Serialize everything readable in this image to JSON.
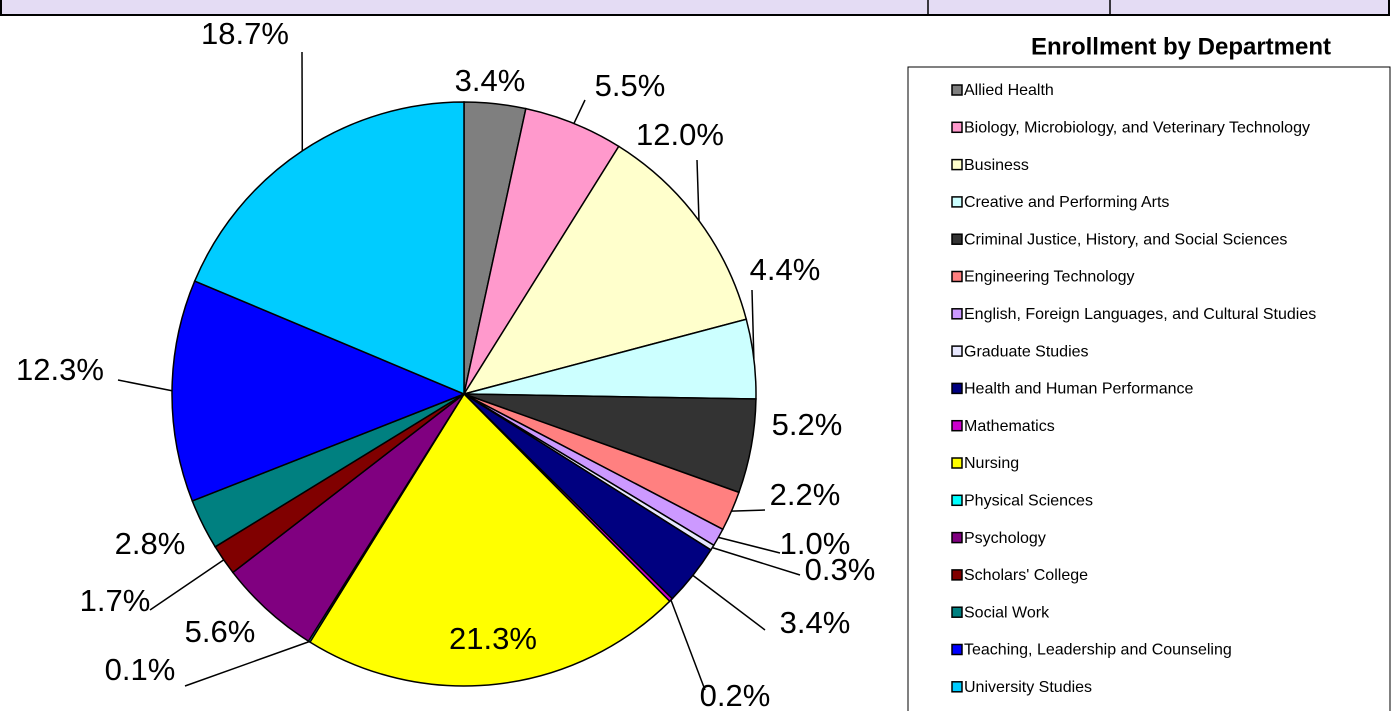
{
  "chart_data": {
    "type": "pie",
    "title": "Enrollment by Department",
    "categories": [
      "Allied Health",
      "Biology, Microbiology, and Veterinary Technology",
      "Business",
      "Creative and Performing Arts",
      "Criminal Justice, History, and Social Sciences",
      "Engineering Technology",
      "English, Foreign Languages, and Cultural Studies",
      "Graduate Studies",
      "Health and Human Performance",
      "Mathematics",
      "Nursing",
      "Physical Sciences",
      "Psychology",
      "Scholars' College",
      "Social Work",
      "Teaching, Leadership and Counseling",
      "University Studies"
    ],
    "values": [
      3.4,
      5.5,
      12.0,
      4.4,
      5.2,
      2.2,
      1.0,
      0.3,
      3.4,
      0.2,
      21.3,
      0.1,
      5.6,
      1.7,
      2.8,
      12.3,
      18.7
    ],
    "value_labels": [
      "3.4%",
      "5.5%",
      "12.0%",
      "4.4%",
      "5.2%",
      "2.2%",
      "1.0%",
      "0.3%",
      "3.4%",
      "0.2%",
      "21.3%",
      "0.1%",
      "5.6%",
      "1.7%",
      "2.8%",
      "12.3%",
      "18.7%"
    ],
    "colors": [
      "#7f7f7f",
      "#ff99cc",
      "#ffffcc",
      "#ccffff",
      "#333333",
      "#ff8080",
      "#cc99ff",
      "#e8e8ff",
      "#000080",
      "#cc00cc",
      "#ffff00",
      "#00ffff",
      "#800080",
      "#800000",
      "#008080",
      "#0000ff",
      "#00ccff"
    ],
    "legend": "right"
  }
}
